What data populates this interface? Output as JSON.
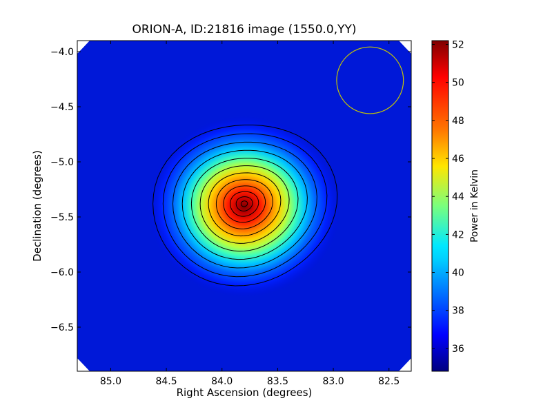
{
  "chart_data": {
    "type": "heatmap",
    "title": "ORION-A, ID:21816 image (1550.0,YY)",
    "xlabel": "Right Ascension (degrees)",
    "ylabel": "Declination (degrees)",
    "colorbar_label": "Power in Kelvin",
    "colormap": "jet",
    "xlim": [
      85.3,
      82.3
    ],
    "ylim": [
      -6.9,
      -3.9
    ],
    "xticks": [
      85.0,
      84.5,
      84.0,
      83.5,
      83.0,
      82.5
    ],
    "xtick_labels": [
      "85.0",
      "84.5",
      "84.0",
      "83.5",
      "83.0",
      "82.5"
    ],
    "yticks": [
      -4.0,
      -4.5,
      -5.0,
      -5.5,
      -6.0,
      -6.5
    ],
    "ytick_labels": [
      "−4.0",
      "−4.5",
      "−5.0",
      "−5.5",
      "−6.0",
      "−6.5"
    ],
    "colorbar_range": [
      34.8,
      52.2
    ],
    "colorbar_ticks": [
      36,
      38,
      40,
      42,
      44,
      46,
      48,
      50,
      52
    ],
    "colorbar_tick_labels": [
      "36",
      "38",
      "40",
      "42",
      "44",
      "46",
      "48",
      "50",
      "52"
    ],
    "source_peak": {
      "ra": 83.8,
      "dec": -5.38,
      "value": 52
    },
    "background_value": 35.5,
    "contour_count": 12,
    "beam_circle": {
      "ra": 82.67,
      "dec": -4.26,
      "radius_deg": 0.3,
      "color": "#c8c800"
    },
    "grid": false
  }
}
